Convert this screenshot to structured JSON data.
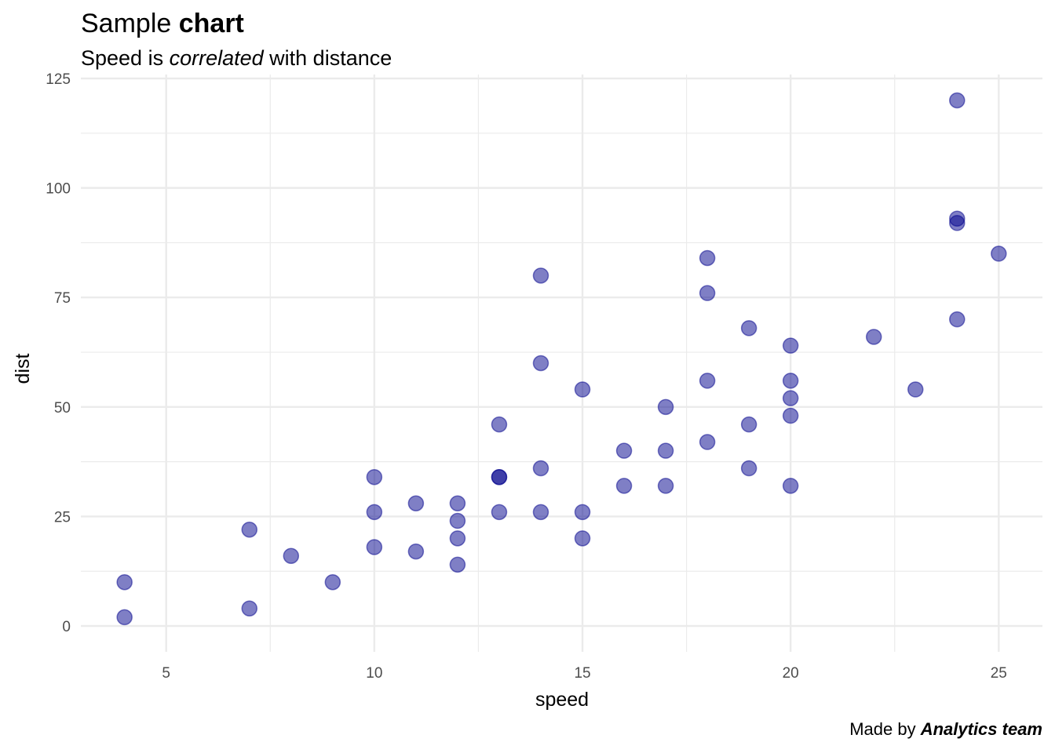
{
  "header": {
    "title_prefix": "Sample ",
    "title_bold": "chart",
    "subtitle_prefix": "Speed is ",
    "subtitle_italic": "correlated",
    "subtitle_suffix": " with distance",
    "caption_prefix": "Made by ",
    "caption_bold_italic": "Analytics team"
  },
  "chart_data": {
    "type": "scatter",
    "title": "Sample chart",
    "subtitle": "Speed is correlated with distance",
    "caption": "Made by Analytics team",
    "xlabel": "speed",
    "ylabel": "dist",
    "xlim": [
      2.95,
      26.05
    ],
    "ylim": [
      -5.9,
      125.9
    ],
    "xticks": [
      5,
      10,
      15,
      20,
      25
    ],
    "yticks": [
      0,
      25,
      50,
      75,
      100,
      125
    ],
    "grid": true,
    "point_color": "#00008b",
    "point_alpha": 0.5,
    "points": [
      [
        4,
        2
      ],
      [
        4,
        10
      ],
      [
        7,
        4
      ],
      [
        7,
        22
      ],
      [
        8,
        16
      ],
      [
        9,
        10
      ],
      [
        10,
        18
      ],
      [
        10,
        26
      ],
      [
        10,
        34
      ],
      [
        11,
        17
      ],
      [
        11,
        28
      ],
      [
        12,
        14
      ],
      [
        12,
        20
      ],
      [
        12,
        24
      ],
      [
        12,
        28
      ],
      [
        13,
        26
      ],
      [
        13,
        34
      ],
      [
        13,
        34
      ],
      [
        13,
        46
      ],
      [
        14,
        26
      ],
      [
        14,
        36
      ],
      [
        14,
        60
      ],
      [
        14,
        80
      ],
      [
        15,
        20
      ],
      [
        15,
        26
      ],
      [
        15,
        54
      ],
      [
        16,
        32
      ],
      [
        16,
        40
      ],
      [
        17,
        32
      ],
      [
        17,
        40
      ],
      [
        17,
        50
      ],
      [
        18,
        42
      ],
      [
        18,
        56
      ],
      [
        18,
        76
      ],
      [
        18,
        84
      ],
      [
        19,
        36
      ],
      [
        19,
        46
      ],
      [
        19,
        68
      ],
      [
        20,
        32
      ],
      [
        20,
        48
      ],
      [
        20,
        52
      ],
      [
        20,
        56
      ],
      [
        20,
        64
      ],
      [
        22,
        66
      ],
      [
        23,
        54
      ],
      [
        24,
        70
      ],
      [
        24,
        92
      ],
      [
        24,
        93
      ],
      [
        24,
        120
      ],
      [
        25,
        85
      ]
    ]
  }
}
